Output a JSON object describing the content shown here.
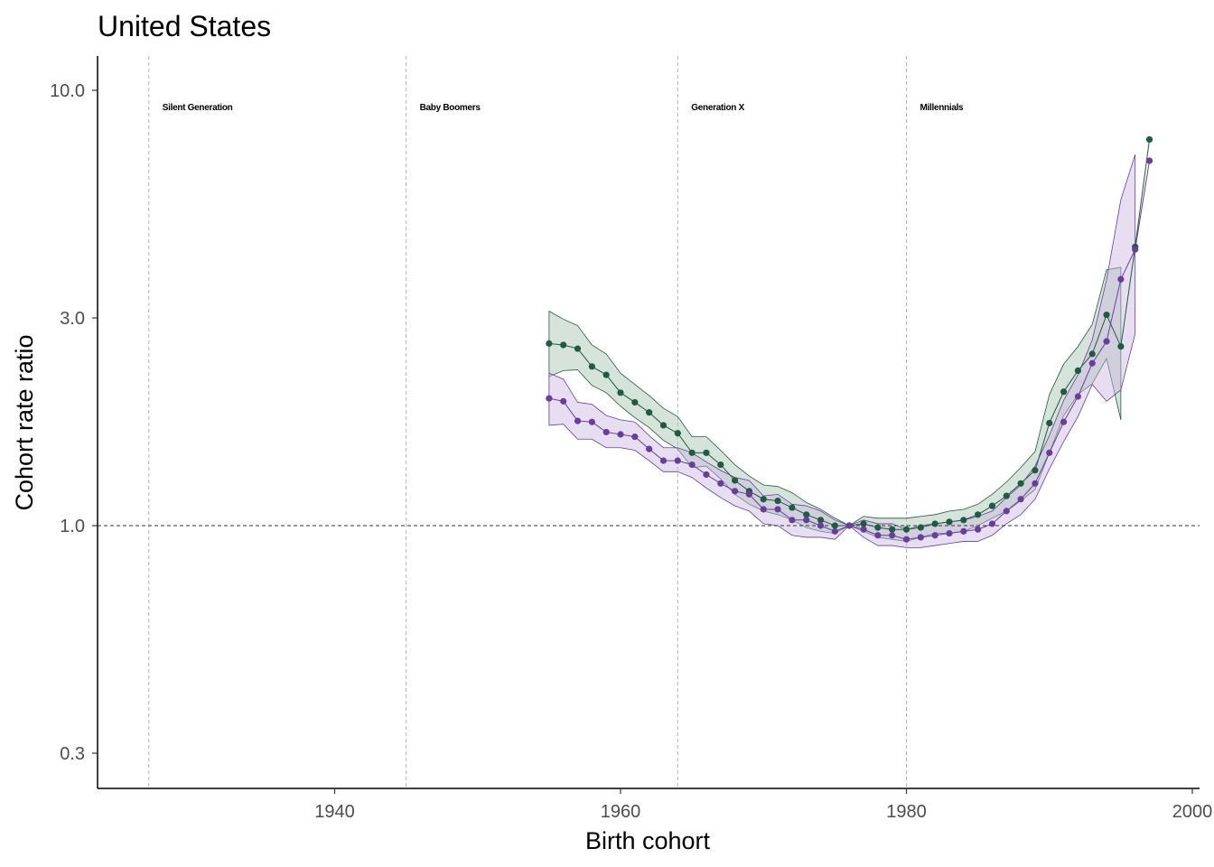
{
  "chart_data": {
    "type": "line",
    "title": "United States",
    "xlabel": "Birth cohort",
    "ylabel": "Cohort rate ratio",
    "log_y": true,
    "xlim": [
      1923,
      2000
    ],
    "ylim": [
      0.26,
      11.4
    ],
    "x_ticks": [
      1940,
      1960,
      1980,
      2000
    ],
    "x_tick_labels": [
      "1940",
      "1960",
      "1980",
      "2000"
    ],
    "y_ticks": [
      0.3,
      1.0,
      3.0,
      10.0
    ],
    "y_tick_labels": [
      "0.3",
      "1.0",
      "3.0",
      "10.0"
    ],
    "reference_line": 1.0,
    "grid": false,
    "legend": "none",
    "generations": [
      {
        "label": "Silent Generation",
        "x": 1928
      },
      {
        "label": "Baby Boomers",
        "x": 1946
      },
      {
        "label": "Generation X",
        "x": 1965
      },
      {
        "label": "Millennials",
        "x": 1981
      }
    ],
    "series": [
      {
        "color": "#1f5c3f",
        "fill": "#a3c2b0",
        "x": [
          1955,
          1956,
          1957,
          1958,
          1959,
          1960,
          1961,
          1962,
          1963,
          1964,
          1965,
          1966,
          1967,
          1968,
          1969,
          1970,
          1971,
          1972,
          1973,
          1974,
          1975,
          1976,
          1977,
          1978,
          1979,
          1980,
          1981,
          1982,
          1983,
          1984,
          1985,
          1986,
          1987,
          1988,
          1989,
          1990,
          1991,
          1992,
          1993,
          1994,
          1995,
          1996,
          1997
        ],
        "values": [
          2.62,
          2.6,
          2.55,
          2.32,
          2.22,
          2.02,
          1.92,
          1.82,
          1.7,
          1.63,
          1.47,
          1.47,
          1.38,
          1.27,
          1.2,
          1.15,
          1.14,
          1.1,
          1.06,
          1.03,
          1.0,
          1.0,
          1.01,
          0.99,
          0.98,
          0.98,
          0.99,
          1.01,
          1.02,
          1.03,
          1.06,
          1.11,
          1.17,
          1.25,
          1.34,
          1.72,
          2.03,
          2.27,
          2.48,
          3.05,
          2.58,
          4.37,
          7.71
        ],
        "lower": [
          2.2,
          2.27,
          2.28,
          2.1,
          2.02,
          1.88,
          1.77,
          1.68,
          1.57,
          1.5,
          1.36,
          1.37,
          1.28,
          1.18,
          1.12,
          1.08,
          1.06,
          1.03,
          0.99,
          0.97,
          0.96,
          1.0,
          0.97,
          0.94,
          0.93,
          0.92,
          0.94,
          0.96,
          0.96,
          0.97,
          1.0,
          1.04,
          1.08,
          1.14,
          1.21,
          1.47,
          1.79,
          2.0,
          2.12,
          2.42,
          1.75,
          null,
          null
        ],
        "upper": [
          3.11,
          2.98,
          2.88,
          2.6,
          2.48,
          2.24,
          2.11,
          1.99,
          1.86,
          1.78,
          1.6,
          1.6,
          1.49,
          1.38,
          1.3,
          1.24,
          1.23,
          1.19,
          1.13,
          1.09,
          1.04,
          1.0,
          1.05,
          1.04,
          1.04,
          1.04,
          1.05,
          1.06,
          1.08,
          1.09,
          1.12,
          1.18,
          1.26,
          1.36,
          1.48,
          2.0,
          2.35,
          2.58,
          2.9,
          3.87,
          3.92,
          null,
          null
        ]
      },
      {
        "color": "#6a3d9a",
        "fill": "#c9b8e0",
        "x": [
          1955,
          1956,
          1957,
          1958,
          1959,
          1960,
          1961,
          1962,
          1963,
          1964,
          1965,
          1966,
          1967,
          1968,
          1969,
          1970,
          1971,
          1972,
          1973,
          1974,
          1975,
          1976,
          1977,
          1978,
          1979,
          1980,
          1981,
          1982,
          1983,
          1984,
          1985,
          1986,
          1987,
          1988,
          1989,
          1990,
          1991,
          1992,
          1993,
          1994,
          1995,
          1996,
          1997
        ],
        "values": [
          1.96,
          1.93,
          1.74,
          1.73,
          1.64,
          1.62,
          1.6,
          1.5,
          1.41,
          1.41,
          1.38,
          1.31,
          1.25,
          1.2,
          1.18,
          1.09,
          1.09,
          1.03,
          1.03,
          1.0,
          0.97,
          1.0,
          0.98,
          0.95,
          0.95,
          0.93,
          0.94,
          0.95,
          0.96,
          0.97,
          0.98,
          1.01,
          1.08,
          1.15,
          1.25,
          1.47,
          1.73,
          1.98,
          2.36,
          2.65,
          3.68,
          4.31,
          6.89
        ],
        "lower": [
          1.7,
          1.71,
          1.58,
          1.58,
          1.51,
          1.51,
          1.49,
          1.41,
          1.33,
          1.33,
          1.29,
          1.22,
          1.16,
          1.11,
          1.08,
          1.01,
          1.0,
          0.95,
          0.94,
          0.94,
          0.93,
          1.0,
          0.94,
          0.9,
          0.9,
          0.89,
          0.89,
          0.9,
          0.91,
          0.92,
          0.92,
          0.95,
          1.01,
          1.06,
          1.15,
          1.35,
          1.56,
          1.78,
          2.11,
          1.93,
          2.05,
          2.76,
          null
        ],
        "upper": [
          2.24,
          2.17,
          1.92,
          1.9,
          1.79,
          1.75,
          1.73,
          1.61,
          1.51,
          1.51,
          1.47,
          1.4,
          1.34,
          1.29,
          1.27,
          1.17,
          1.18,
          1.12,
          1.11,
          1.08,
          1.03,
          1.0,
          1.03,
          1.01,
          1.01,
          0.98,
          1.0,
          1.01,
          1.02,
          1.03,
          1.05,
          1.08,
          1.16,
          1.24,
          1.37,
          1.61,
          1.94,
          2.22,
          2.67,
          3.67,
          5.61,
          7.12,
          null
        ]
      }
    ]
  }
}
